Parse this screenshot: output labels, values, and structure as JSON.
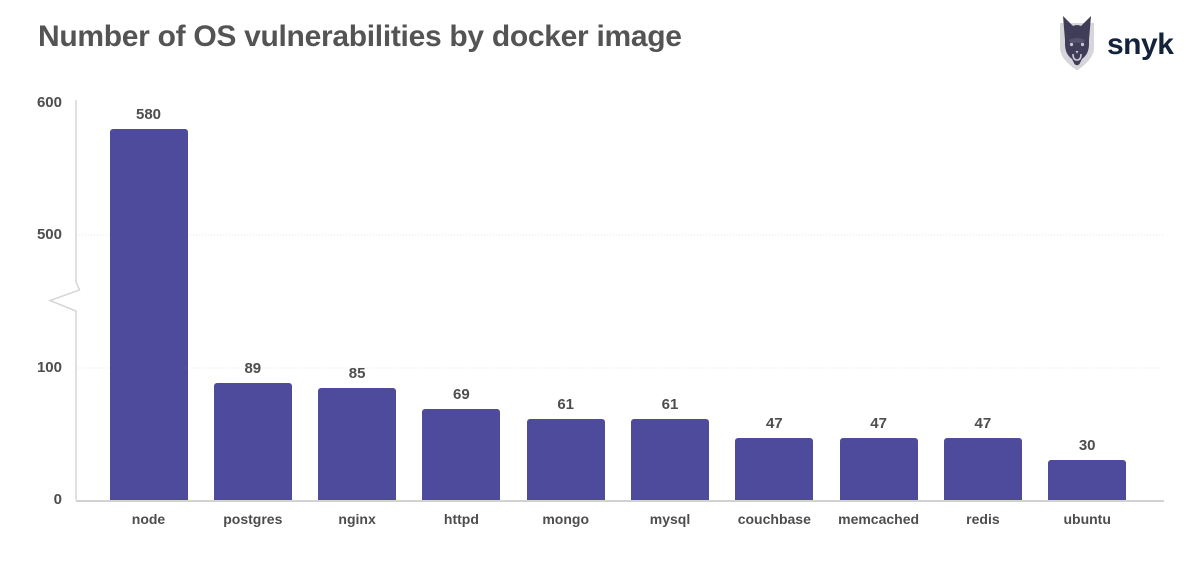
{
  "header": {
    "title": "Number of OS vulnerabilities by docker image",
    "brand": "snyk"
  },
  "chart_data": {
    "type": "bar",
    "title": "Number of OS vulnerabilities by docker image",
    "categories": [
      "node",
      "postgres",
      "nginx",
      "httpd",
      "mongo",
      "mysql",
      "couchbase",
      "memcached",
      "redis",
      "ubuntu"
    ],
    "values": [
      580,
      89,
      85,
      69,
      61,
      61,
      47,
      47,
      47,
      30
    ],
    "xlabel": "",
    "ylabel": "",
    "yticks": [
      0,
      100,
      500,
      600
    ],
    "ylim": [
      0,
      600
    ],
    "axis_break": {
      "between": [
        100,
        500
      ]
    },
    "grid": "horizontal-at-100-and-500",
    "legend": "none",
    "value_labels": true
  },
  "colors": {
    "bar": "#4e4a9c",
    "title": "#545454",
    "label": "#4d4d4d",
    "axis": "#d6d6d6",
    "baseline": "#d2d2d2",
    "grid": "#e4e4e4",
    "brand_text": "#14233c",
    "shield": "#d5d5da",
    "dog": "#403d58"
  }
}
